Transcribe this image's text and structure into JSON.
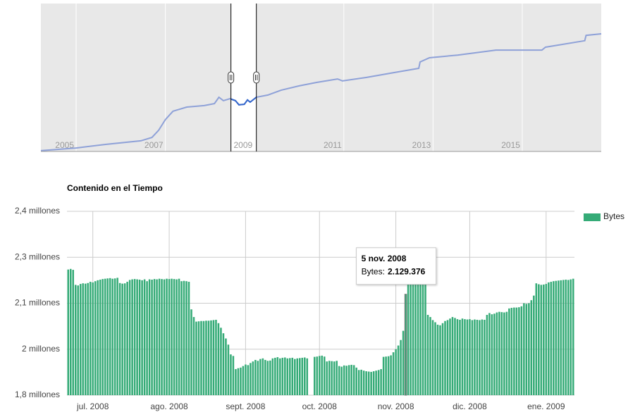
{
  "chart_data": [
    {
      "type": "line",
      "x": [
        2004.21,
        2005.0,
        2005.66,
        2006.45,
        2006.7,
        2006.85,
        2007.0,
        2007.17,
        2007.48,
        2007.87,
        2008.1,
        2008.2,
        2008.3,
        2008.45,
        2008.57,
        2008.65,
        2008.77,
        2008.84,
        2008.9,
        2009.04,
        2009.3,
        2009.6,
        2010.0,
        2010.39,
        2010.86,
        2010.97,
        2011.5,
        2012.13,
        2012.68,
        2012.71,
        2012.92,
        2013.55,
        2014.41,
        2015.44,
        2015.52,
        2016.4,
        2016.43,
        2016.77
      ],
      "values": [
        30000,
        140000,
        285000,
        430000,
        570000,
        860000,
        1290000,
        1630000,
        1800000,
        1860000,
        1940000,
        2200000,
        2060000,
        2140000,
        2060000,
        1890000,
        1910000,
        2090000,
        2000000,
        2200000,
        2290000,
        2490000,
        2660000,
        2800000,
        2940000,
        2860000,
        3000000,
        3200000,
        3370000,
        3630000,
        3800000,
        3910000,
        4110000,
        4110000,
        4230000,
        4490000,
        4710000,
        4770000
      ],
      "color": "#8ea1d8",
      "selection_color": "#3366cc",
      "xlim": [
        2004.21,
        2016.77
      ],
      "ylim": [
        0,
        6000000
      ],
      "xticks": [
        2005,
        2007,
        2009,
        2011,
        2013,
        2015
      ],
      "selection": [
        2008.47,
        2009.04
      ]
    },
    {
      "type": "bar",
      "title": "Contenido en el Tiempo",
      "series": [
        {
          "name": "Bytes",
          "color": "#35ab77",
          "values": [
            2210000,
            2212000,
            2209000,
            2160000,
            2158000,
            2163000,
            2165000,
            2164000,
            2166000,
            2170000,
            2168000,
            2172000,
            2175000,
            2177000,
            2179000,
            2180000,
            2181000,
            2182000,
            2180000,
            2181000,
            2183000,
            2166000,
            2164000,
            2165000,
            2170000,
            2176000,
            2178000,
            2179000,
            2178000,
            2177000,
            2175000,
            2178000,
            2172000,
            2178000,
            2177000,
            2179000,
            2178000,
            2180000,
            2179000,
            2178000,
            2180000,
            2179000,
            2180000,
            2179000,
            2178000,
            2180000,
            2172000,
            2173000,
            2172000,
            2170000,
            2080000,
            2055000,
            2040000,
            2041000,
            2042000,
            2042000,
            2043000,
            2043000,
            2044000,
            2045000,
            2046000,
            2035000,
            2020000,
            2002000,
            1985000,
            1965000,
            1933000,
            1928000,
            1885000,
            1888000,
            1890000,
            1895000,
            1900000,
            1898000,
            1905000,
            1910000,
            1915000,
            1912000,
            1918000,
            1920000,
            1915000,
            1912000,
            1913000,
            1920000,
            1922000,
            1924000,
            1920000,
            1922000,
            1923000,
            1920000,
            1921000,
            1922000,
            1918000,
            1920000,
            1921000,
            1922000,
            1923000,
            1920000,
            null,
            null,
            1925000,
            1926000,
            1928000,
            1929000,
            1926000,
            1910000,
            1912000,
            1911000,
            1910000,
            1912000,
            1895000,
            1893000,
            1897000,
            1896000,
            1898000,
            1899000,
            1898000,
            1890000,
            1882000,
            1883000,
            1880000,
            1878000,
            1877000,
            1876000,
            1878000,
            1880000,
            1882000,
            1885000,
            1925000,
            1926000,
            1927000,
            1930000,
            1940000,
            1950000,
            1962000,
            1980000,
            2010000,
            2129376,
            2170000,
            2172000,
            2175000,
            2176000,
            2177000,
            2178000,
            2176000,
            2174000,
            2062000,
            2055000,
            2045000,
            2038000,
            2030000,
            2028000,
            2035000,
            2042000,
            2045000,
            2050000,
            2055000,
            2052000,
            2048000,
            2046000,
            2050000,
            2048000,
            2047000,
            2048000,
            2045000,
            2047000,
            2046000,
            2045000,
            2047000,
            2046000,
            2062000,
            2068000,
            2064000,
            2066000,
            2070000,
            2072000,
            2071000,
            2070000,
            2072000,
            2083000,
            2085000,
            2086000,
            2086000,
            2087000,
            2090000,
            2100000,
            2098000,
            2100000,
            2110000,
            2125000,
            2165000,
            2162000,
            2160000,
            2161000,
            2163000,
            2168000,
            2170000,
            2172000,
            2173000,
            2174000,
            2175000,
            2176000,
            2177000,
            2176000,
            2178000,
            2180000
          ]
        }
      ],
      "xlim": [
        -0.5,
        205.5
      ],
      "xticks": [
        {
          "value": 10,
          "label": "jul. 2008"
        },
        {
          "value": 41,
          "label": "ago. 2008"
        },
        {
          "value": 72,
          "label": "sept. 2008"
        },
        {
          "value": 102,
          "label": "oct. 2008"
        },
        {
          "value": 133,
          "label": "nov. 2008"
        },
        {
          "value": 163,
          "label": "dic. 2008"
        },
        {
          "value": 194,
          "label": "ene. 2009"
        }
      ],
      "ylim": [
        1800000,
        2400000
      ],
      "yticks": [
        {
          "value": 1800000,
          "label": "1,8 millones"
        },
        {
          "value": 1950000,
          "label": "2 millones"
        },
        {
          "value": 2100000,
          "label": "2,1 millones"
        },
        {
          "value": 2250000,
          "label": "2,3 millones"
        },
        {
          "value": 2400000,
          "label": "2,4 millones"
        }
      ],
      "grid": true,
      "legend": "right",
      "tooltip": {
        "date": "5 nov. 2008",
        "label": "Bytes:",
        "value": 2129376,
        "value_label": "2.129.376"
      }
    }
  ]
}
